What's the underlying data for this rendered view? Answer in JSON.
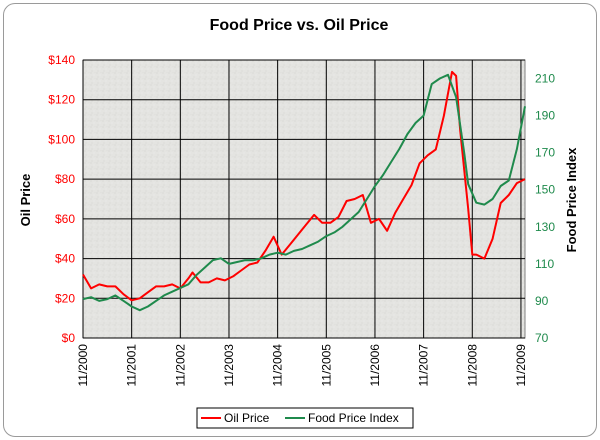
{
  "chart_data": {
    "type": "line",
    "title": "Food Price vs. Oil Price",
    "y_left_label": "Oil Price",
    "y_right_label": "Food Price Index",
    "y_left_lim": [
      0,
      140
    ],
    "y_right_lim": [
      70,
      220
    ],
    "y_left_ticks": [
      "$0",
      "$20",
      "$40",
      "$60",
      "$80",
      "$100",
      "$120",
      "$140"
    ],
    "y_left_tick_values": [
      0,
      20,
      40,
      60,
      80,
      100,
      120,
      140
    ],
    "y_right_ticks": [
      "70",
      "90",
      "110",
      "130",
      "150",
      "170",
      "190",
      "210"
    ],
    "y_right_tick_values": [
      70,
      90,
      110,
      130,
      150,
      170,
      190,
      210
    ],
    "x_ticks": [
      "11/2000",
      "11/2001",
      "11/2002",
      "11/2003",
      "11/2004",
      "11/2005",
      "11/2006",
      "11/2007",
      "11/2008",
      "11/2009"
    ],
    "x_lim": [
      "2000-11",
      "2009-12"
    ],
    "grid": true,
    "legend_position": "bottom",
    "colors": {
      "oil": "#ff0000",
      "food": "#1f8a4c",
      "left_axis_text": "#ff0000",
      "right_axis_text": "#1f8a4c",
      "plot_bg": "#e6e6e3",
      "grid": "#000000"
    },
    "series": [
      {
        "name": "Oil Price",
        "axis": "left",
        "x": [
          "2000-11",
          "2001-01",
          "2001-03",
          "2001-05",
          "2001-07",
          "2001-09",
          "2001-11",
          "2002-01",
          "2002-03",
          "2002-05",
          "2002-07",
          "2002-09",
          "2002-11",
          "2003-01",
          "2003-02",
          "2003-04",
          "2003-06",
          "2003-08",
          "2003-10",
          "2003-12",
          "2004-02",
          "2004-04",
          "2004-06",
          "2004-08",
          "2004-10",
          "2004-12",
          "2005-02",
          "2005-04",
          "2005-06",
          "2005-08",
          "2005-10",
          "2005-12",
          "2006-02",
          "2006-04",
          "2006-06",
          "2006-08",
          "2006-10",
          "2006-12",
          "2007-02",
          "2007-04",
          "2007-06",
          "2007-08",
          "2007-10",
          "2007-12",
          "2008-02",
          "2008-04",
          "2008-06",
          "2008-07",
          "2008-08",
          "2008-10",
          "2008-11",
          "2008-12",
          "2009-02",
          "2009-04",
          "2009-06",
          "2009-08",
          "2009-10",
          "2009-12"
        ],
        "values": [
          32,
          25,
          27,
          26,
          26,
          22,
          19,
          20,
          23,
          26,
          26,
          27,
          25,
          30,
          33,
          28,
          28,
          30,
          29,
          31,
          34,
          37,
          38,
          44,
          51,
          42,
          47,
          52,
          57,
          62,
          58,
          58,
          61,
          69,
          70,
          72,
          58,
          60,
          54,
          63,
          70,
          77,
          88,
          92,
          95,
          112,
          134,
          132,
          105,
          65,
          42,
          42,
          40,
          50,
          68,
          72,
          78,
          80
        ]
      },
      {
        "name": "Food Price Index",
        "axis": "right",
        "x": [
          "2000-11",
          "2001-01",
          "2001-03",
          "2001-05",
          "2001-07",
          "2001-09",
          "2001-11",
          "2002-01",
          "2002-03",
          "2002-05",
          "2002-07",
          "2002-09",
          "2002-11",
          "2003-01",
          "2003-03",
          "2003-05",
          "2003-07",
          "2003-09",
          "2003-11",
          "2004-01",
          "2004-03",
          "2004-05",
          "2004-07",
          "2004-09",
          "2004-11",
          "2005-01",
          "2005-03",
          "2005-05",
          "2005-07",
          "2005-09",
          "2005-11",
          "2006-01",
          "2006-03",
          "2006-05",
          "2006-07",
          "2006-09",
          "2006-11",
          "2007-01",
          "2007-03",
          "2007-05",
          "2007-07",
          "2007-09",
          "2007-11",
          "2008-01",
          "2008-03",
          "2008-05",
          "2008-07",
          "2008-09",
          "2008-10",
          "2008-12",
          "2009-02",
          "2009-04",
          "2009-06",
          "2009-08",
          "2009-10",
          "2009-12"
        ],
        "values": [
          91,
          92,
          90,
          91,
          93,
          90,
          87,
          85,
          87,
          90,
          93,
          95,
          97,
          99,
          104,
          108,
          112,
          113,
          110,
          111,
          112,
          112,
          113,
          115,
          116,
          115,
          117,
          118,
          120,
          122,
          125,
          127,
          130,
          134,
          138,
          145,
          152,
          158,
          165,
          172,
          180,
          186,
          190,
          207,
          210,
          212,
          200,
          170,
          153,
          143,
          142,
          145,
          152,
          155,
          172,
          195
        ]
      }
    ]
  }
}
